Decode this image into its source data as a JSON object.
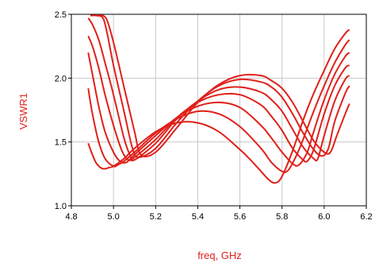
{
  "chart_data": {
    "type": "line",
    "xlabel": "freq, GHz",
    "ylabel": "VSWR1",
    "xlim": [
      4.8,
      6.2
    ],
    "ylim": [
      1.0,
      2.5
    ],
    "xticks": [
      "4.8",
      "5.0",
      "5.2",
      "5.4",
      "5.6",
      "5.8",
      "6.0",
      "6.2"
    ],
    "yticks": [
      "1.0",
      "1.5",
      "2.0",
      "2.5"
    ],
    "grid": true,
    "line_color": "#e0201a",
    "series": [
      {
        "x": [
          4.88,
          4.9,
          4.92,
          4.95,
          4.98,
          5.0,
          5.05,
          5.1,
          5.2,
          5.3,
          5.4,
          5.5,
          5.6,
          5.65,
          5.7,
          5.74,
          5.77,
          5.8,
          5.85,
          5.9,
          5.95,
          6.0,
          6.05,
          6.1,
          6.12
        ],
        "y": [
          1.49,
          1.4,
          1.33,
          1.29,
          1.3,
          1.31,
          1.37,
          1.45,
          1.58,
          1.65,
          1.65,
          1.58,
          1.44,
          1.36,
          1.27,
          1.2,
          1.18,
          1.23,
          1.43,
          1.67,
          1.88,
          2.06,
          2.23,
          2.35,
          2.38
        ]
      },
      {
        "x": [
          4.88,
          4.9,
          4.93,
          4.96,
          5.0,
          5.02,
          5.05,
          5.1,
          5.2,
          5.3,
          5.4,
          5.5,
          5.6,
          5.7,
          5.75,
          5.8,
          5.83,
          5.87,
          5.9,
          5.95,
          6.0,
          6.05,
          6.1,
          6.12
        ],
        "y": [
          1.92,
          1.72,
          1.5,
          1.37,
          1.31,
          1.32,
          1.35,
          1.42,
          1.57,
          1.68,
          1.74,
          1.72,
          1.62,
          1.45,
          1.34,
          1.27,
          1.28,
          1.4,
          1.52,
          1.74,
          1.94,
          2.12,
          2.26,
          2.3
        ]
      },
      {
        "x": [
          4.88,
          4.9,
          4.93,
          4.96,
          5.0,
          5.03,
          5.06,
          5.1,
          5.2,
          5.3,
          5.4,
          5.5,
          5.6,
          5.7,
          5.75,
          5.8,
          5.85,
          5.88,
          5.92,
          5.95,
          6.0,
          6.05,
          6.1,
          6.12
        ],
        "y": [
          2.2,
          2.03,
          1.78,
          1.58,
          1.42,
          1.35,
          1.34,
          1.4,
          1.55,
          1.69,
          1.78,
          1.81,
          1.77,
          1.63,
          1.53,
          1.42,
          1.33,
          1.32,
          1.42,
          1.58,
          1.83,
          2.03,
          2.17,
          2.2
        ]
      },
      {
        "x": [
          4.88,
          4.9,
          4.93,
          4.96,
          5.0,
          5.04,
          5.07,
          5.1,
          5.2,
          5.3,
          5.4,
          5.5,
          5.6,
          5.7,
          5.75,
          5.8,
          5.85,
          5.9,
          5.92,
          5.95,
          6.0,
          6.05,
          6.1,
          6.12
        ],
        "y": [
          2.33,
          2.25,
          2.08,
          1.87,
          1.63,
          1.43,
          1.36,
          1.38,
          1.52,
          1.69,
          1.81,
          1.87,
          1.87,
          1.79,
          1.7,
          1.59,
          1.45,
          1.36,
          1.35,
          1.44,
          1.72,
          1.94,
          2.08,
          2.1
        ]
      },
      {
        "x": [
          4.88,
          4.9,
          4.93,
          4.96,
          5.0,
          5.05,
          5.08,
          5.1,
          5.2,
          5.3,
          5.4,
          5.5,
          5.6,
          5.7,
          5.75,
          5.8,
          5.85,
          5.9,
          5.95,
          5.97,
          6.0,
          6.05,
          6.1,
          6.12
        ],
        "y": [
          2.47,
          2.42,
          2.3,
          2.12,
          1.87,
          1.53,
          1.39,
          1.36,
          1.49,
          1.68,
          1.82,
          1.91,
          1.93,
          1.89,
          1.83,
          1.74,
          1.6,
          1.46,
          1.37,
          1.37,
          1.55,
          1.82,
          1.99,
          2.02
        ]
      },
      {
        "x": [
          4.89,
          4.92,
          4.95,
          4.97,
          5.0,
          5.05,
          5.09,
          5.12,
          5.2,
          5.3,
          5.4,
          5.5,
          5.6,
          5.7,
          5.75,
          5.8,
          5.85,
          5.9,
          5.95,
          5.99,
          6.02,
          6.05,
          6.1,
          6.12
        ],
        "y": [
          2.49,
          2.49,
          2.47,
          2.35,
          2.1,
          1.74,
          1.45,
          1.38,
          1.45,
          1.65,
          1.82,
          1.94,
          1.99,
          1.97,
          1.93,
          1.85,
          1.72,
          1.57,
          1.44,
          1.39,
          1.45,
          1.66,
          1.88,
          1.94
        ]
      },
      {
        "x": [
          4.93,
          4.95,
          4.97,
          5.0,
          5.05,
          5.1,
          5.13,
          5.2,
          5.3,
          5.4,
          5.5,
          5.6,
          5.7,
          5.75,
          5.8,
          5.85,
          5.9,
          5.95,
          6.0,
          6.03,
          6.06,
          6.1,
          6.12
        ],
        "y": [
          2.49,
          2.49,
          2.45,
          2.28,
          1.93,
          1.58,
          1.4,
          1.42,
          1.61,
          1.81,
          1.95,
          2.02,
          2.02,
          1.98,
          1.92,
          1.81,
          1.66,
          1.51,
          1.42,
          1.42,
          1.55,
          1.72,
          1.8
        ]
      }
    ]
  }
}
